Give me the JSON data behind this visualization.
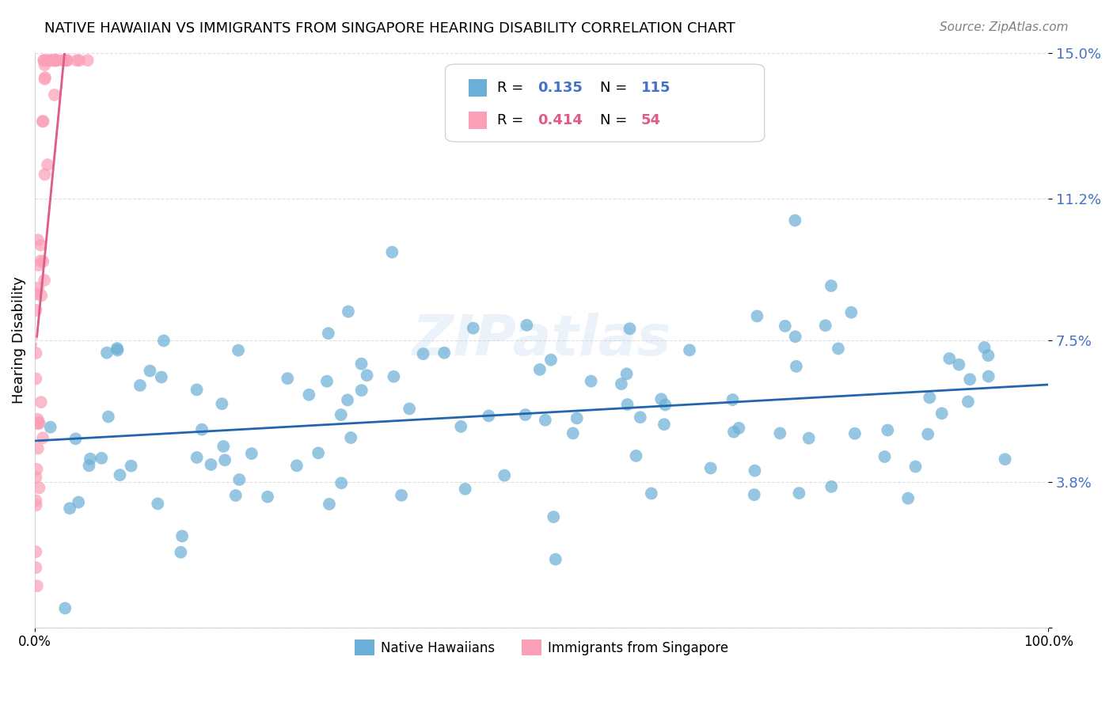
{
  "title": "NATIVE HAWAIIAN VS IMMIGRANTS FROM SINGAPORE HEARING DISABILITY CORRELATION CHART",
  "source": "Source: ZipAtlas.com",
  "ylabel": "Hearing Disability",
  "yticks": [
    0.0,
    0.038,
    0.075,
    0.112,
    0.15
  ],
  "ytick_labels": [
    "",
    "3.8%",
    "7.5%",
    "11.2%",
    "15.0%"
  ],
  "xlim": [
    0.0,
    1.0
  ],
  "ylim": [
    0.0,
    0.15
  ],
  "watermark": "ZIPatlas",
  "legend_r1": "0.135",
  "legend_n1": "115",
  "legend_r2": "0.414",
  "legend_n2": "54",
  "blue_color": "#6baed6",
  "pink_color": "#fa9fb5",
  "blue_line_color": "#2166ac",
  "pink_line_color": "#e05a8a",
  "axis_tick_color": "#4472c4",
  "seed_blue": 42,
  "seed_pink": 99,
  "N_blue": 115,
  "N_pink": 54
}
